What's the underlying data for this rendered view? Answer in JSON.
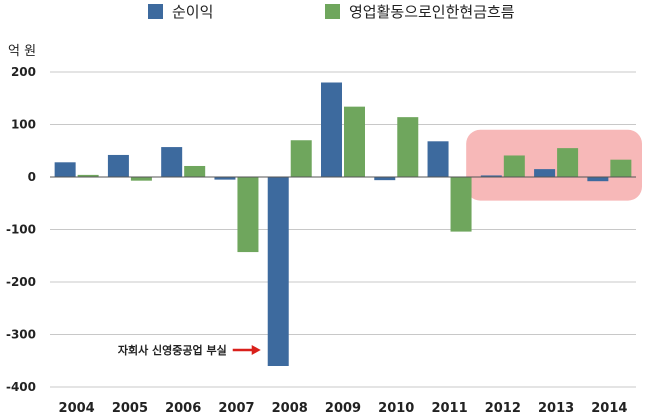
{
  "chart_data": {
    "type": "bar",
    "categories": [
      "2004",
      "2005",
      "2006",
      "2007",
      "2008",
      "2009",
      "2010",
      "2011",
      "2012",
      "2013",
      "2014"
    ],
    "series": [
      {
        "name": "순이익",
        "color": "#3d6a9e",
        "values": [
          28,
          42,
          57,
          -5,
          -360,
          180,
          -6,
          68,
          3,
          15,
          -8
        ]
      },
      {
        "name": "영업활동으로인한현금흐름",
        "color": "#6fa65d",
        "values": [
          4,
          -7,
          21,
          -143,
          70,
          134,
          114,
          -104,
          41,
          55,
          33
        ]
      }
    ],
    "ylabel": "억 원",
    "ylim": [
      -400,
      200
    ],
    "yticks": [
      200,
      100,
      0,
      -100,
      -200,
      -300,
      -400
    ],
    "grid": true,
    "legend": "top",
    "annotation": {
      "text": "자회사 신영중공업 부실",
      "category": "2008",
      "arrow_color": "#d9201b"
    },
    "highlight": {
      "categories": [
        "2012",
        "2013",
        "2014"
      ],
      "color": "#f4a0a0"
    }
  }
}
